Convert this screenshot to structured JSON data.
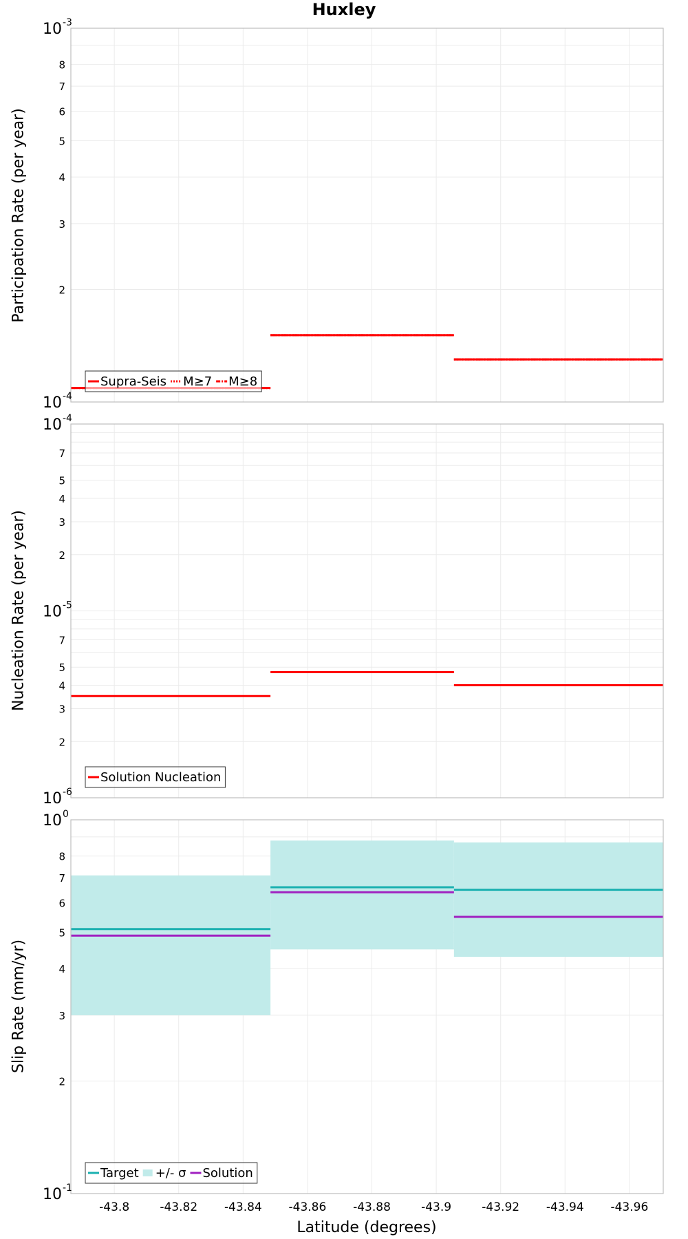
{
  "chart_data": {
    "title": "Huxley",
    "xlabel": "Latitude (degrees)",
    "x_ticks": [
      -43.8,
      -43.82,
      -43.84,
      -43.86,
      -43.88,
      -43.9,
      -43.92,
      -43.94,
      -43.96
    ],
    "x_tick_labels": [
      "-43.8",
      "-43.82",
      "-43.84",
      "-43.86",
      "-43.88",
      "-43.9",
      "-43.92",
      "-43.94",
      "-43.96"
    ],
    "xlim": [
      -43.7865,
      -43.9705
    ],
    "segments": [
      [
        -43.7865,
        -43.8485
      ],
      [
        -43.8485,
        -43.9055
      ],
      [
        -43.9055,
        -43.9705
      ]
    ],
    "panels": [
      {
        "type": "line",
        "ylabel": "Participation Rate (per year)",
        "yscale": "log",
        "ylim": [
          0.0001,
          0.001
        ],
        "y_major_ticks": [
          {
            "base": "10",
            "exp": "-3",
            "value": 0.001
          },
          {
            "base": "10",
            "exp": "-4",
            "value": 0.0001
          }
        ],
        "y_minor_ticks": [
          {
            "label": "8",
            "value": 0.0008
          },
          {
            "label": "7",
            "value": 0.0007
          },
          {
            "label": "6",
            "value": 0.0006
          },
          {
            "label": "5",
            "value": 0.0005
          },
          {
            "label": "4",
            "value": 0.0004
          },
          {
            "label": "3",
            "value": 0.0003
          },
          {
            "label": "2",
            "value": 0.0002
          }
        ],
        "series": [
          {
            "name": "Supra-Seis",
            "color": "#ff0000",
            "style": "solid",
            "values": [
              0.000109,
              0.000151,
              0.00013
            ]
          },
          {
            "name": "M≥7",
            "color": "#ff0000",
            "style": "dotted",
            "values": [
              0.000109,
              0.000151,
              0.00013
            ]
          },
          {
            "name": "M≥8",
            "color": "#ff0000",
            "style": "dashdot",
            "values": [
              0.000109,
              0.000151,
              0.00013
            ]
          }
        ],
        "legend": {
          "position": "bottom-left",
          "entries": [
            {
              "label": "Supra-Seis",
              "style": "solid",
              "color": "#ff0000"
            },
            {
              "label": "M≥7",
              "style": "dotted",
              "color": "#ff0000"
            },
            {
              "label": "M≥8",
              "style": "dashdot",
              "color": "#ff0000"
            }
          ]
        }
      },
      {
        "type": "line",
        "ylabel": "Nucleation Rate (per year)",
        "yscale": "log",
        "ylim": [
          1e-06,
          0.0001
        ],
        "y_major_ticks": [
          {
            "base": "10",
            "exp": "-4",
            "value": 0.0001
          },
          {
            "base": "10",
            "exp": "-5",
            "value": 1e-05
          },
          {
            "base": "10",
            "exp": "-6",
            "value": 1e-06
          }
        ],
        "y_minor_ticks": [
          {
            "label": "7",
            "value": 7e-05
          },
          {
            "label": "5",
            "value": 5e-05
          },
          {
            "label": "4",
            "value": 4e-05
          },
          {
            "label": "3",
            "value": 3e-05
          },
          {
            "label": "2",
            "value": 2e-05
          },
          {
            "label": "7",
            "value": 7e-06
          },
          {
            "label": "5",
            "value": 5e-06
          },
          {
            "label": "4",
            "value": 4e-06
          },
          {
            "label": "3",
            "value": 3e-06
          },
          {
            "label": "2",
            "value": 2e-06
          }
        ],
        "series": [
          {
            "name": "Solution Nucleation",
            "color": "#ff0000",
            "style": "solid",
            "values": [
              3.5e-06,
              4.7e-06,
              4e-06
            ]
          }
        ],
        "legend": {
          "position": "bottom-left",
          "entries": [
            {
              "label": "Solution Nucleation",
              "style": "solid",
              "color": "#ff0000"
            }
          ]
        }
      },
      {
        "type": "line",
        "ylabel": "Slip Rate (mm/yr)",
        "yscale": "log",
        "ylim": [
          0.1,
          1
        ],
        "y_major_ticks": [
          {
            "base": "10",
            "exp": "0",
            "value": 1
          },
          {
            "base": "10",
            "exp": "-1",
            "value": 0.1
          }
        ],
        "y_minor_ticks": [
          {
            "label": "8",
            "value": 0.8
          },
          {
            "label": "7",
            "value": 0.7
          },
          {
            "label": "6",
            "value": 0.6
          },
          {
            "label": "5",
            "value": 0.5
          },
          {
            "label": "4",
            "value": 0.4
          },
          {
            "label": "3",
            "value": 0.3
          },
          {
            "label": "2",
            "value": 0.2
          }
        ],
        "band": {
          "name": "+/- σ",
          "color": "#c1ebea",
          "lower": [
            0.3,
            0.45,
            0.43
          ],
          "upper": [
            0.71,
            0.88,
            0.87
          ]
        },
        "series": [
          {
            "name": "Target",
            "color": "#1ab0b0",
            "style": "solid",
            "values": [
              0.51,
              0.66,
              0.65
            ]
          },
          {
            "name": "Solution",
            "color": "#a020c0",
            "style": "solid",
            "values": [
              0.49,
              0.64,
              0.55
            ]
          }
        ],
        "legend": {
          "position": "bottom-left",
          "entries": [
            {
              "label": "Target",
              "style": "solid",
              "color": "#1ab0b0"
            },
            {
              "label": "+/- σ",
              "style": "band",
              "color": "#c1ebea"
            },
            {
              "label": "Solution",
              "style": "solid",
              "color": "#a020c0"
            }
          ]
        }
      }
    ]
  }
}
